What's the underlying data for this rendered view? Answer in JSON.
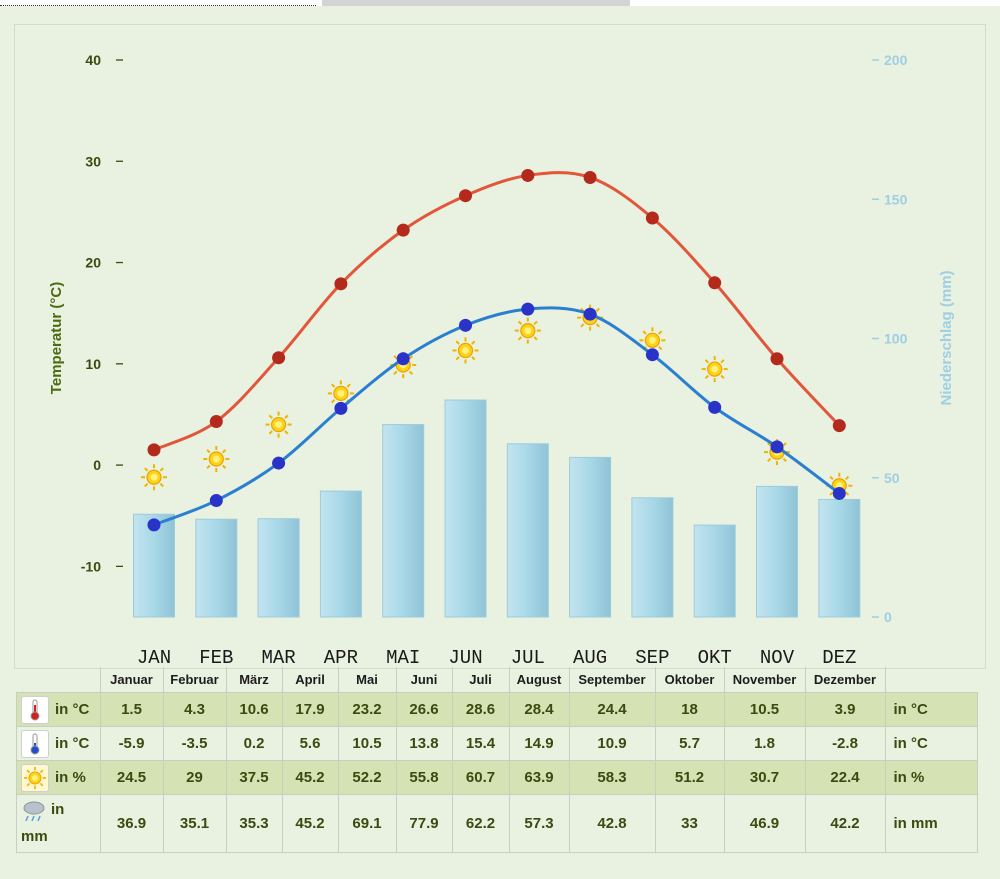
{
  "chart_data": {
    "type": "bar+line",
    "categories": [
      "JAN",
      "FEB",
      "MAR",
      "APR",
      "MAI",
      "JUN",
      "JUL",
      "AUG",
      "SEP",
      "OKT",
      "NOV",
      "DEZ"
    ],
    "series": [
      {
        "values": [
          1.5,
          4.3,
          10.6,
          17.9,
          23.2,
          26.6,
          28.6,
          28.4,
          24.4,
          18,
          10.5,
          3.9
        ],
        "color": "#e2563a",
        "axis": "left",
        "kind": "line"
      },
      {
        "values": [
          -5.9,
          -3.5,
          0.2,
          5.6,
          10.5,
          13.8,
          15.4,
          14.9,
          10.9,
          5.7,
          1.8,
          -2.8
        ],
        "color": "#2a7fd0",
        "axis": "left",
        "kind": "line"
      },
      {
        "values": [
          24.5,
          29,
          37.5,
          45.2,
          52.2,
          55.8,
          60.7,
          63.9,
          58.3,
          51.2,
          30.7,
          22.4
        ],
        "axis": "left-scaled",
        "kind": "sun-markers"
      },
      {
        "values": [
          36.9,
          35.1,
          35.3,
          45.2,
          69.1,
          77.9,
          62.2,
          57.3,
          42.8,
          33,
          46.9,
          42.2
        ],
        "color": "#a8d8e8",
        "axis": "right",
        "kind": "bar"
      }
    ],
    "ylabel": "Temperatur (°C)",
    "ylabel_right": "Niederschlag (mm)",
    "ylim": [
      -15,
      40
    ],
    "ylim_right": [
      0,
      200
    ],
    "yticks": [
      "40",
      "30",
      "20",
      "10",
      "0",
      "-10"
    ],
    "yticks_right": [
      "200",
      "150",
      "100",
      "50",
      "0"
    ],
    "grid": false
  },
  "table": {
    "month_names": [
      "Januar",
      "Februar",
      "März",
      "April",
      "Mai",
      "Juni",
      "Juli",
      "August",
      "September",
      "Oktober",
      "November",
      "Dezember"
    ],
    "rows": [
      {
        "icon": "thermometer-red-icon",
        "label": "in °C",
        "unit": "in °C",
        "values": [
          "1.5",
          "4.3",
          "10.6",
          "17.9",
          "23.2",
          "26.6",
          "28.6",
          "28.4",
          "24.4",
          "18",
          "10.5",
          "3.9"
        ]
      },
      {
        "icon": "thermometer-blue-icon",
        "label": "in °C",
        "unit": "in °C",
        "values": [
          "-5.9",
          "-3.5",
          "0.2",
          "5.6",
          "10.5",
          "13.8",
          "15.4",
          "14.9",
          "10.9",
          "5.7",
          "1.8",
          "-2.8"
        ]
      },
      {
        "icon": "sun-icon",
        "label": "in %",
        "unit": "in %",
        "values": [
          "24.5",
          "29",
          "37.5",
          "45.2",
          "52.2",
          "55.8",
          "60.7",
          "63.9",
          "58.3",
          "51.2",
          "30.7",
          "22.4"
        ]
      },
      {
        "icon": "rain-cloud-icon",
        "label_a": "in",
        "label_b": "mm",
        "unit": "in mm",
        "values": [
          "36.9",
          "35.1",
          "35.3",
          "45.2",
          "69.1",
          "77.9",
          "62.2",
          "57.3",
          "42.8",
          "33",
          "46.9",
          "42.2"
        ]
      }
    ]
  }
}
